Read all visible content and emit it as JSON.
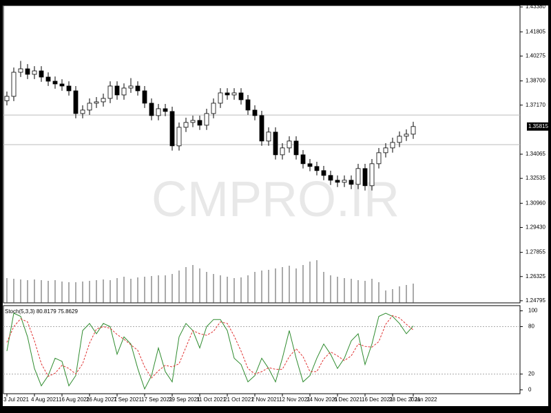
{
  "chart_data": {
    "type": "candlestick",
    "watermark": "CMPRO.IR",
    "categories": [
      "3 Jul 2021",
      null,
      null,
      null,
      "4 Aug 2021",
      null,
      null,
      null,
      "16 Aug 2021",
      null,
      null,
      null,
      "26 Aug 2021",
      null,
      null,
      null,
      "7 Sep 2021",
      null,
      null,
      null,
      "17 Sep 2021",
      null,
      null,
      null,
      "29 Sep 2021",
      null,
      null,
      null,
      "11 Oct 2021",
      null,
      null,
      null,
      "21 Oct 2021",
      null,
      null,
      null,
      "2 Nov 2021",
      null,
      null,
      null,
      "12 Nov 2021",
      null,
      null,
      null,
      "24 Nov 2021",
      null,
      null,
      null,
      "6 Dec 2021",
      null,
      null,
      null,
      "16 Dec 2021",
      null,
      null,
      null,
      "28 Dec 2021",
      null,
      null,
      "7 Jan 2022"
    ],
    "open": [
      1.3745,
      1.37725,
      1.39247,
      1.39465,
      1.39117,
      1.39334,
      1.38943,
      1.38682,
      1.38508,
      1.38377,
      1.38073,
      1.36637,
      1.36855,
      1.3729,
      1.37377,
      1.37594,
      1.38377,
      1.37812,
      1.38247,
      1.38377,
      1.38073,
      1.3729,
      1.36507,
      1.36942,
      1.36768,
      1.34593,
      1.35767,
      1.36072,
      1.36202,
      1.35898,
      1.36637,
      1.3729,
      1.37942,
      1.37812,
      1.37942,
      1.37507,
      1.36855,
      1.36507,
      1.34897,
      1.35463,
      1.34027,
      1.34462,
      1.34897,
      1.34027,
      1.33462,
      1.33288,
      1.33027,
      1.32722,
      1.32418,
      1.32287,
      1.32418,
      1.32157,
      1.33157,
      1.3207,
      1.33462,
      1.34158,
      1.34462,
      1.3481,
      1.35202,
      1.35332
    ],
    "high": [
      1.38025,
      1.39547,
      1.39965,
      1.39765,
      1.39634,
      1.39634,
      1.39243,
      1.38982,
      1.38808,
      1.38677,
      1.38373,
      1.37155,
      1.3759,
      1.37677,
      1.37894,
      1.38677,
      1.38677,
      1.38547,
      1.38877,
      1.38677,
      1.38373,
      1.3759,
      1.37242,
      1.37242,
      1.37068,
      1.36067,
      1.36372,
      1.36502,
      1.36502,
      1.36937,
      1.3759,
      1.38242,
      1.38242,
      1.38242,
      1.38242,
      1.37807,
      1.37155,
      1.36807,
      1.35763,
      1.35763,
      1.34762,
      1.35197,
      1.35197,
      1.34327,
      1.33762,
      1.33588,
      1.33327,
      1.33022,
      1.32718,
      1.32718,
      1.32718,
      1.33457,
      1.33457,
      1.33762,
      1.34458,
      1.34762,
      1.3511,
      1.35502,
      1.35632,
      1.36115
    ],
    "low": [
      1.3715,
      1.37425,
      1.38947,
      1.38817,
      1.38817,
      1.38643,
      1.38382,
      1.38208,
      1.38077,
      1.37773,
      1.36337,
      1.36337,
      1.36555,
      1.3699,
      1.37077,
      1.37294,
      1.37512,
      1.37512,
      1.37947,
      1.37773,
      1.3699,
      1.36207,
      1.36207,
      1.36468,
      1.34293,
      1.34293,
      1.35467,
      1.35772,
      1.35598,
      1.35598,
      1.36337,
      1.3699,
      1.37512,
      1.37512,
      1.37207,
      1.36555,
      1.36207,
      1.34597,
      1.34597,
      1.33727,
      1.33727,
      1.34162,
      1.33727,
      1.33162,
      1.32988,
      1.32727,
      1.32422,
      1.32118,
      1.31987,
      1.31987,
      1.31857,
      1.31857,
      1.3177,
      1.3177,
      1.33162,
      1.33858,
      1.34162,
      1.3451,
      1.34902,
      1.35032
    ],
    "close": [
      1.37725,
      1.39247,
      1.39465,
      1.39117,
      1.39334,
      1.38943,
      1.38682,
      1.38508,
      1.38377,
      1.38073,
      1.36637,
      1.36855,
      1.3729,
      1.37377,
      1.37594,
      1.38377,
      1.37812,
      1.38247,
      1.38377,
      1.38073,
      1.3729,
      1.36507,
      1.36942,
      1.36768,
      1.34593,
      1.35767,
      1.36072,
      1.36202,
      1.35898,
      1.36637,
      1.3729,
      1.37942,
      1.37812,
      1.37942,
      1.37507,
      1.36855,
      1.36507,
      1.34897,
      1.35463,
      1.34027,
      1.34462,
      1.34897,
      1.34027,
      1.33462,
      1.33288,
      1.33027,
      1.32722,
      1.32418,
      1.32287,
      1.32418,
      1.32157,
      1.33157,
      1.3207,
      1.33462,
      1.34158,
      1.34462,
      1.3481,
      1.35202,
      1.35332,
      1.35815
    ],
    "volume": [
      36,
      35,
      34,
      33,
      34,
      33,
      32,
      33,
      31,
      30,
      30,
      31,
      32,
      33,
      34,
      33,
      36,
      38,
      35,
      37,
      38,
      39,
      40,
      40,
      42,
      47,
      52,
      55,
      50,
      45,
      42,
      40,
      38,
      36,
      37,
      40,
      45,
      47,
      48,
      50,
      52,
      54,
      50,
      55,
      60,
      62,
      45,
      40,
      38,
      36,
      35,
      33,
      32,
      35,
      30,
      18,
      20,
      24,
      26,
      28
    ],
    "volume_ylim": [
      0,
      100
    ],
    "ylim": [
      1.2466,
      1.4347
    ],
    "yticks": [
      {
        "value": 1.4338,
        "label": "1.43380"
      },
      {
        "value": 1.41805,
        "label": "1.41805"
      },
      {
        "value": 1.40275,
        "label": "1.40275"
      },
      {
        "value": 1.387,
        "label": "1.38700"
      },
      {
        "value": 1.3717,
        "label": "1.37170"
      },
      {
        "value": 1.34065,
        "label": "1.34065"
      },
      {
        "value": 1.32535,
        "label": "1.32535"
      },
      {
        "value": 1.3096,
        "label": "1.30960"
      },
      {
        "value": 1.2943,
        "label": "1.29430"
      },
      {
        "value": 1.27855,
        "label": "1.27855"
      },
      {
        "value": 1.26325,
        "label": "1.26325"
      },
      {
        "value": 1.24795,
        "label": "1.24795"
      }
    ],
    "hlines": [
      1.3654,
      1.3467
    ],
    "indicator": {
      "name": "Stoch(5,3,3)",
      "ylim": [
        -5,
        104
      ],
      "yticks": [
        0,
        20,
        80,
        100
      ],
      "levels": [
        20,
        80
      ],
      "series": [
        {
          "color": "#2e8b2e",
          "values": [
            49,
            97,
            93,
            67,
            27,
            5,
            18,
            40,
            36,
            5,
            18,
            75,
            84,
            71,
            84,
            80,
            45,
            67,
            58,
            27,
            1,
            18,
            53,
            23,
            10,
            67,
            84,
            75,
            53,
            80,
            89,
            89,
            75,
            40,
            32,
            10,
            18,
            40,
            27,
            10,
            40,
            75,
            40,
            10,
            18,
            40,
            58,
            45,
            27,
            40,
            62,
            71,
            32,
            58,
            93,
            97,
            93,
            84,
            71,
            80.8179
          ]
        },
        {
          "color": "#e03030",
          "values": [
            60,
            80,
            90,
            86,
            62,
            33,
            17,
            21,
            31,
            27,
            20,
            33,
            59,
            77,
            80,
            78,
            70,
            64,
            57,
            50,
            29,
            15,
            24,
            31,
            29,
            33,
            54,
            75,
            71,
            69,
            74,
            86,
            84,
            68,
            49,
            27,
            20,
            23,
            28,
            26,
            26,
            42,
            52,
            42,
            23,
            23,
            39,
            48,
            43,
            37,
            43,
            58,
            55,
            54,
            61,
            83,
            94,
            91,
            83,
            75.8629
          ]
        }
      ]
    }
  }
}
